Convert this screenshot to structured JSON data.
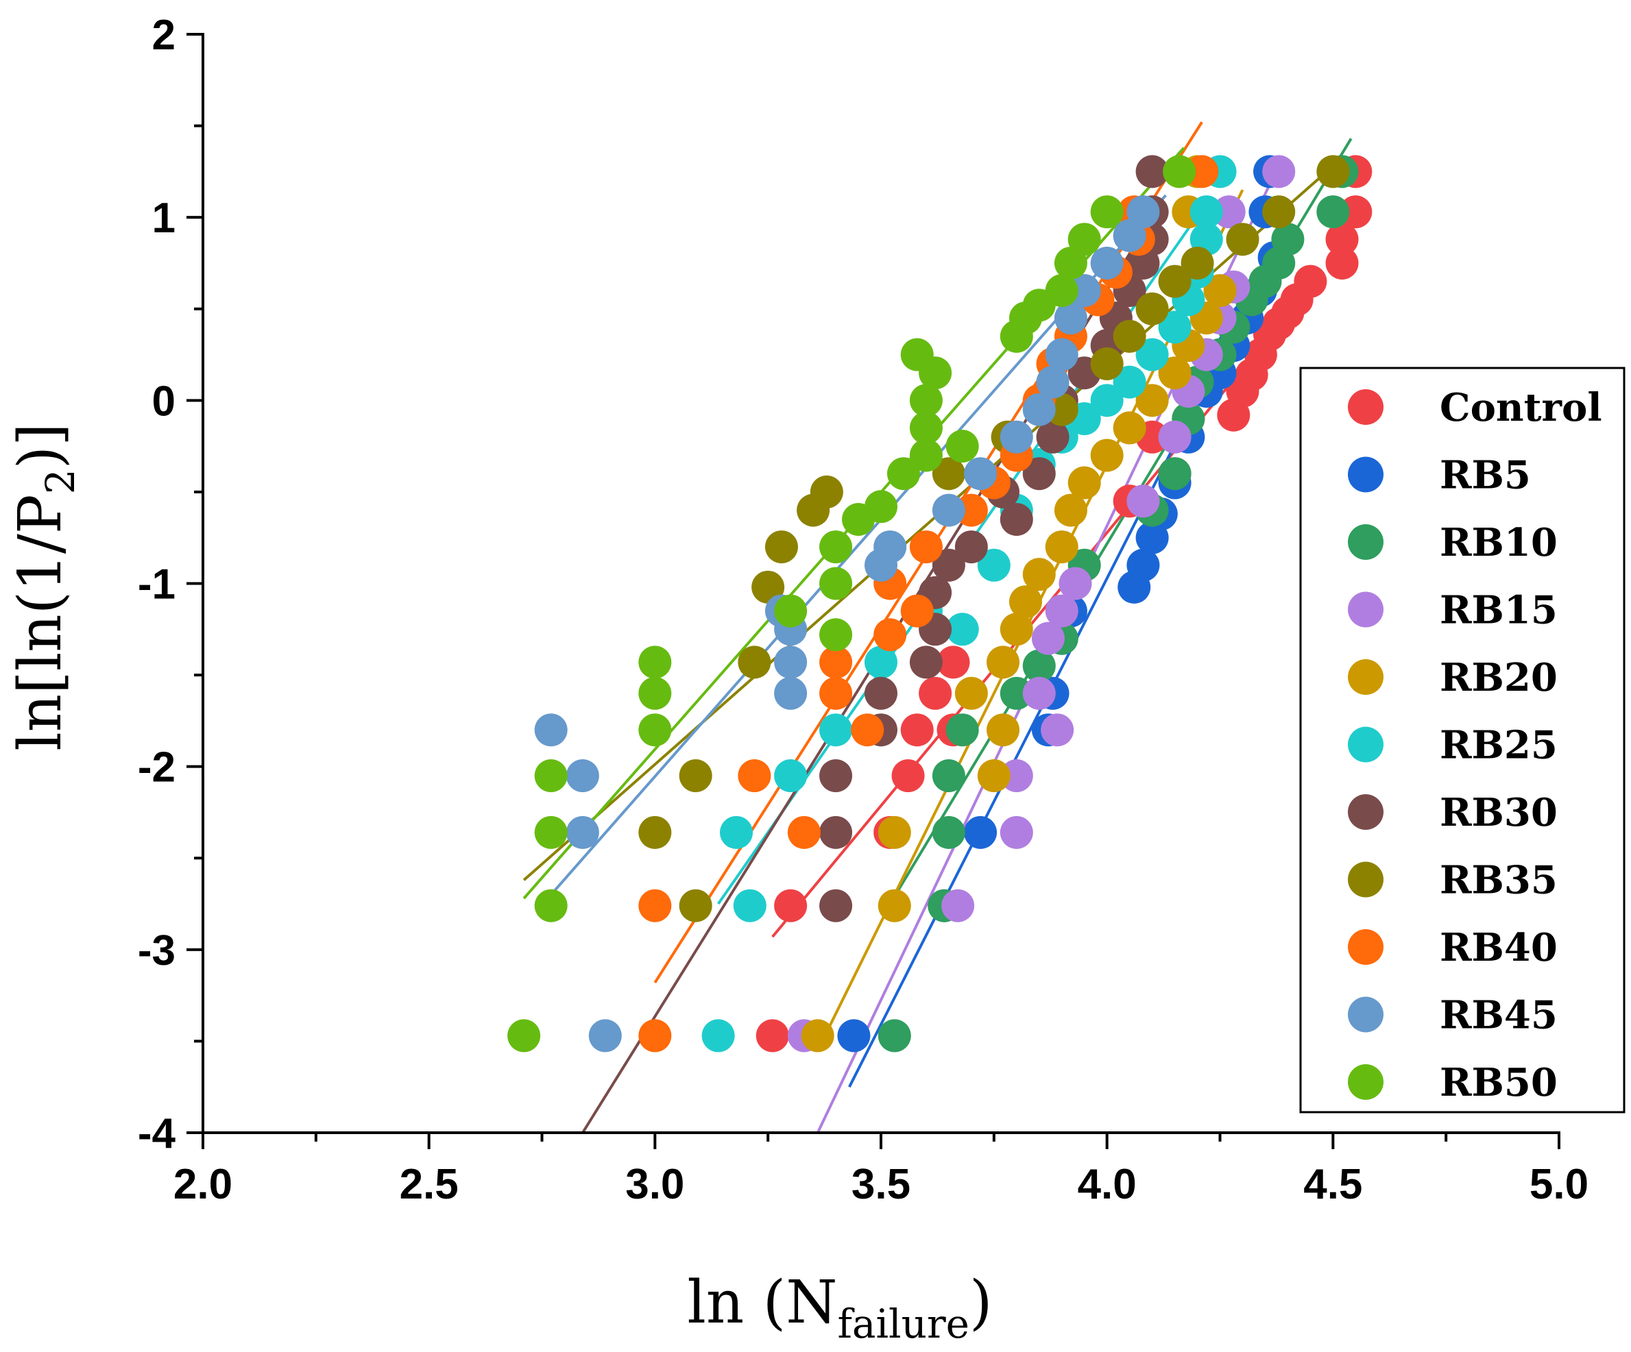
{
  "chart_data": {
    "type": "scatter",
    "title": "",
    "xlabel": {
      "main": "ln (N",
      "sub": "failure",
      "end": ")"
    },
    "ylabel": {
      "main": "ln[ln(1/P",
      "sub": "2",
      "end": ")]"
    },
    "xlim": [
      2.0,
      5.0
    ],
    "ylim": [
      -4,
      2
    ],
    "xticks": [
      "2.0",
      "2.5",
      "3.0",
      "3.5",
      "4.0",
      "4.5",
      "5.0"
    ],
    "yticks": [
      "-4",
      "-3",
      "-2",
      "-1",
      "0",
      "1",
      "2"
    ],
    "legend_position": "right",
    "series": [
      {
        "name": "Control",
        "color": "#ef4145",
        "fit": [
          [
            3.26,
            -2.93
          ],
          [
            4.47,
            0.68
          ]
        ],
        "points": [
          [
            3.26,
            -3.47
          ],
          [
            3.3,
            -2.76
          ],
          [
            3.56,
            -2.05
          ],
          [
            3.52,
            -2.36
          ],
          [
            3.58,
            -1.8
          ],
          [
            3.62,
            -1.6
          ],
          [
            3.66,
            -1.43
          ],
          [
            3.66,
            -1.8
          ],
          [
            4.05,
            -0.55
          ],
          [
            4.1,
            -0.2
          ],
          [
            4.15,
            -0.4
          ],
          [
            4.18,
            -0.1
          ],
          [
            4.28,
            -0.08
          ],
          [
            4.3,
            0.05
          ],
          [
            4.32,
            0.14
          ],
          [
            4.34,
            0.25
          ],
          [
            4.36,
            0.36
          ],
          [
            4.38,
            0.42
          ],
          [
            4.4,
            0.48
          ],
          [
            4.42,
            0.55
          ],
          [
            4.45,
            0.65
          ],
          [
            4.52,
            0.75
          ],
          [
            4.52,
            0.88
          ],
          [
            4.55,
            1.03
          ],
          [
            4.55,
            1.25
          ]
        ]
      },
      {
        "name": "RB5",
        "color": "#1b66d6",
        "fit": [
          [
            3.43,
            -3.75
          ],
          [
            4.38,
            0.88
          ]
        ],
        "points": [
          [
            3.44,
            -3.47
          ],
          [
            3.72,
            -2.36
          ],
          [
            3.64,
            -2.76
          ],
          [
            3.87,
            -1.8
          ],
          [
            3.88,
            -1.6
          ],
          [
            3.9,
            -1.3
          ],
          [
            3.92,
            -1.15
          ],
          [
            4.06,
            -1.02
          ],
          [
            4.08,
            -0.9
          ],
          [
            4.1,
            -0.75
          ],
          [
            4.12,
            -0.62
          ],
          [
            4.15,
            -0.45
          ],
          [
            4.18,
            -0.2
          ],
          [
            4.22,
            0.05
          ],
          [
            4.25,
            0.15
          ],
          [
            4.28,
            0.3
          ],
          [
            4.31,
            0.45
          ],
          [
            4.34,
            0.6
          ],
          [
            4.37,
            0.78
          ],
          [
            4.35,
            1.03
          ],
          [
            4.36,
            1.25
          ]
        ]
      },
      {
        "name": "RB10",
        "color": "#2f9e5e",
        "fit": [
          [
            3.52,
            -2.75
          ],
          [
            4.54,
            1.43
          ]
        ],
        "points": [
          [
            3.53,
            -3.47
          ],
          [
            3.64,
            -2.76
          ],
          [
            3.65,
            -2.36
          ],
          [
            3.65,
            -2.05
          ],
          [
            3.68,
            -1.8
          ],
          [
            3.8,
            -1.6
          ],
          [
            3.85,
            -1.45
          ],
          [
            3.9,
            -1.3
          ],
          [
            3.95,
            -0.9
          ],
          [
            4.1,
            -0.6
          ],
          [
            4.15,
            -0.4
          ],
          [
            4.18,
            -0.1
          ],
          [
            4.2,
            0.1
          ],
          [
            4.25,
            0.25
          ],
          [
            4.28,
            0.4
          ],
          [
            4.32,
            0.55
          ],
          [
            4.35,
            0.65
          ],
          [
            4.38,
            0.75
          ],
          [
            4.4,
            0.88
          ],
          [
            4.5,
            1.03
          ],
          [
            4.52,
            1.25
          ]
        ]
      },
      {
        "name": "RB15",
        "color": "#b07ee0",
        "fit": [
          [
            3.36,
            -4.0
          ],
          [
            4.36,
            1.18
          ]
        ],
        "points": [
          [
            3.33,
            -3.47
          ],
          [
            3.67,
            -2.76
          ],
          [
            3.8,
            -2.36
          ],
          [
            3.8,
            -2.05
          ],
          [
            3.89,
            -1.8
          ],
          [
            3.85,
            -1.6
          ],
          [
            3.87,
            -1.3
          ],
          [
            3.9,
            -1.15
          ],
          [
            3.93,
            -1.0
          ],
          [
            4.08,
            -0.55
          ],
          [
            4.15,
            -0.2
          ],
          [
            4.18,
            0.05
          ],
          [
            4.22,
            0.25
          ],
          [
            4.25,
            0.45
          ],
          [
            4.28,
            0.62
          ],
          [
            4.27,
            1.03
          ],
          [
            4.38,
            1.25
          ]
        ]
      },
      {
        "name": "RB20",
        "color": "#cc9900",
        "fit": [
          [
            3.38,
            -3.45
          ],
          [
            4.3,
            1.15
          ]
        ],
        "points": [
          [
            3.36,
            -3.47
          ],
          [
            3.53,
            -2.76
          ],
          [
            3.53,
            -2.36
          ],
          [
            3.75,
            -2.05
          ],
          [
            3.77,
            -1.8
          ],
          [
            3.7,
            -1.6
          ],
          [
            3.77,
            -1.43
          ],
          [
            3.8,
            -1.25
          ],
          [
            3.82,
            -1.1
          ],
          [
            3.85,
            -0.95
          ],
          [
            3.9,
            -0.8
          ],
          [
            3.92,
            -0.6
          ],
          [
            3.95,
            -0.45
          ],
          [
            4.0,
            -0.3
          ],
          [
            4.05,
            -0.15
          ],
          [
            4.1,
            0.0
          ],
          [
            4.15,
            0.15
          ],
          [
            4.18,
            0.3
          ],
          [
            4.22,
            0.45
          ],
          [
            4.25,
            0.6
          ],
          [
            4.18,
            1.03
          ],
          [
            4.2,
            1.25
          ]
        ]
      },
      {
        "name": "RB25",
        "color": "#1fcccc",
        "fit": [
          [
            3.14,
            -2.75
          ],
          [
            4.22,
            1.08
          ]
        ],
        "points": [
          [
            3.14,
            -3.47
          ],
          [
            3.21,
            -2.76
          ],
          [
            3.18,
            -2.36
          ],
          [
            3.3,
            -2.05
          ],
          [
            3.4,
            -1.8
          ],
          [
            3.5,
            -1.43
          ],
          [
            3.6,
            -1.15
          ],
          [
            3.68,
            -1.25
          ],
          [
            3.75,
            -0.9
          ],
          [
            3.8,
            -0.6
          ],
          [
            3.85,
            -0.35
          ],
          [
            3.9,
            -0.2
          ],
          [
            3.95,
            -0.1
          ],
          [
            4.0,
            0.0
          ],
          [
            4.05,
            0.1
          ],
          [
            4.1,
            0.25
          ],
          [
            4.15,
            0.4
          ],
          [
            4.18,
            0.55
          ],
          [
            4.2,
            0.7
          ],
          [
            4.22,
            0.88
          ],
          [
            4.22,
            1.03
          ],
          [
            4.25,
            1.25
          ]
        ]
      },
      {
        "name": "RB30",
        "color": "#7a4b4b",
        "fit": [
          [
            2.84,
            -4.0
          ],
          [
            4.08,
            0.92
          ]
        ],
        "points": [
          [
            3.4,
            -2.76
          ],
          [
            3.4,
            -2.36
          ],
          [
            3.4,
            -2.05
          ],
          [
            3.5,
            -1.8
          ],
          [
            3.5,
            -1.6
          ],
          [
            3.6,
            -1.43
          ],
          [
            3.62,
            -1.25
          ],
          [
            3.62,
            -1.05
          ],
          [
            3.65,
            -0.9
          ],
          [
            3.7,
            -0.8
          ],
          [
            3.77,
            -0.5
          ],
          [
            3.8,
            -0.65
          ],
          [
            3.85,
            -0.4
          ],
          [
            3.88,
            -0.2
          ],
          [
            3.9,
            0.0
          ],
          [
            3.95,
            0.15
          ],
          [
            4.0,
            0.3
          ],
          [
            4.02,
            0.45
          ],
          [
            4.05,
            0.6
          ],
          [
            4.08,
            0.75
          ],
          [
            4.1,
            0.88
          ],
          [
            4.1,
            1.03
          ],
          [
            4.1,
            1.25
          ]
        ]
      },
      {
        "name": "RB35",
        "color": "#8c8200",
        "fit": [
          [
            2.71,
            -2.62
          ],
          [
            4.5,
            1.28
          ]
        ],
        "points": [
          [
            3.09,
            -2.76
          ],
          [
            3.0,
            -2.36
          ],
          [
            3.09,
            -2.05
          ],
          [
            3.22,
            -1.43
          ],
          [
            3.25,
            -1.02
          ],
          [
            3.28,
            -0.8
          ],
          [
            3.35,
            -0.6
          ],
          [
            3.38,
            -0.5
          ],
          [
            3.65,
            -0.4
          ],
          [
            3.78,
            -0.2
          ],
          [
            3.9,
            -0.05
          ],
          [
            4.0,
            0.2
          ],
          [
            4.05,
            0.35
          ],
          [
            4.1,
            0.5
          ],
          [
            4.15,
            0.65
          ],
          [
            4.2,
            0.75
          ],
          [
            4.3,
            0.88
          ],
          [
            4.38,
            1.03
          ],
          [
            4.5,
            1.25
          ]
        ]
      },
      {
        "name": "RB40",
        "color": "#ff6a0a",
        "fit": [
          [
            3.0,
            -3.18
          ],
          [
            4.21,
            1.52
          ]
        ],
        "points": [
          [
            3.0,
            -3.47
          ],
          [
            3.0,
            -2.76
          ],
          [
            3.33,
            -2.36
          ],
          [
            3.22,
            -2.05
          ],
          [
            3.47,
            -1.8
          ],
          [
            3.4,
            -1.6
          ],
          [
            3.4,
            -1.43
          ],
          [
            3.52,
            -1.28
          ],
          [
            3.58,
            -1.15
          ],
          [
            3.52,
            -1.0
          ],
          [
            3.6,
            -0.8
          ],
          [
            3.7,
            -0.6
          ],
          [
            3.75,
            -0.45
          ],
          [
            3.8,
            -0.3
          ],
          [
            3.85,
            0.0
          ],
          [
            3.88,
            0.2
          ],
          [
            3.92,
            0.35
          ],
          [
            3.98,
            0.55
          ],
          [
            4.02,
            0.7
          ],
          [
            4.07,
            0.88
          ],
          [
            4.06,
            1.03
          ],
          [
            4.21,
            1.25
          ]
        ]
      },
      {
        "name": "RB45",
        "color": "#6699cc",
        "fit": [
          [
            2.77,
            -2.7
          ],
          [
            4.13,
            1.12
          ]
        ],
        "points": [
          [
            2.89,
            -3.47
          ],
          [
            2.84,
            -2.36
          ],
          [
            2.84,
            -2.05
          ],
          [
            2.77,
            -1.8
          ],
          [
            3.3,
            -1.6
          ],
          [
            3.3,
            -1.43
          ],
          [
            3.3,
            -1.25
          ],
          [
            3.28,
            -1.15
          ],
          [
            3.5,
            -0.9
          ],
          [
            3.52,
            -0.8
          ],
          [
            3.65,
            -0.6
          ],
          [
            3.72,
            -0.4
          ],
          [
            3.8,
            -0.2
          ],
          [
            3.85,
            -0.05
          ],
          [
            3.88,
            0.1
          ],
          [
            3.9,
            0.25
          ],
          [
            3.92,
            0.45
          ],
          [
            3.95,
            0.6
          ],
          [
            4.0,
            0.75
          ],
          [
            4.05,
            0.9
          ],
          [
            4.08,
            1.03
          ]
        ]
      },
      {
        "name": "RB50",
        "color": "#66bb11",
        "fit": [
          [
            2.71,
            -2.72
          ],
          [
            4.17,
            1.38
          ]
        ],
        "points": [
          [
            2.71,
            -3.47
          ],
          [
            2.77,
            -2.76
          ],
          [
            2.77,
            -2.36
          ],
          [
            2.77,
            -2.05
          ],
          [
            3.0,
            -1.8
          ],
          [
            3.0,
            -1.6
          ],
          [
            3.0,
            -1.43
          ],
          [
            3.4,
            -1.28
          ],
          [
            3.3,
            -1.15
          ],
          [
            3.4,
            -1.0
          ],
          [
            3.4,
            -0.8
          ],
          [
            3.45,
            -0.65
          ],
          [
            3.5,
            -0.58
          ],
          [
            3.55,
            -0.4
          ],
          [
            3.6,
            -0.3
          ],
          [
            3.6,
            -0.15
          ],
          [
            3.6,
            0.0
          ],
          [
            3.62,
            0.15
          ],
          [
            3.58,
            0.25
          ],
          [
            3.68,
            -0.25
          ],
          [
            3.8,
            0.35
          ],
          [
            3.82,
            0.45
          ],
          [
            3.85,
            0.52
          ],
          [
            3.9,
            0.6
          ],
          [
            3.92,
            0.75
          ],
          [
            3.95,
            0.88
          ],
          [
            4.0,
            1.03
          ],
          [
            4.16,
            1.25
          ]
        ]
      }
    ]
  }
}
